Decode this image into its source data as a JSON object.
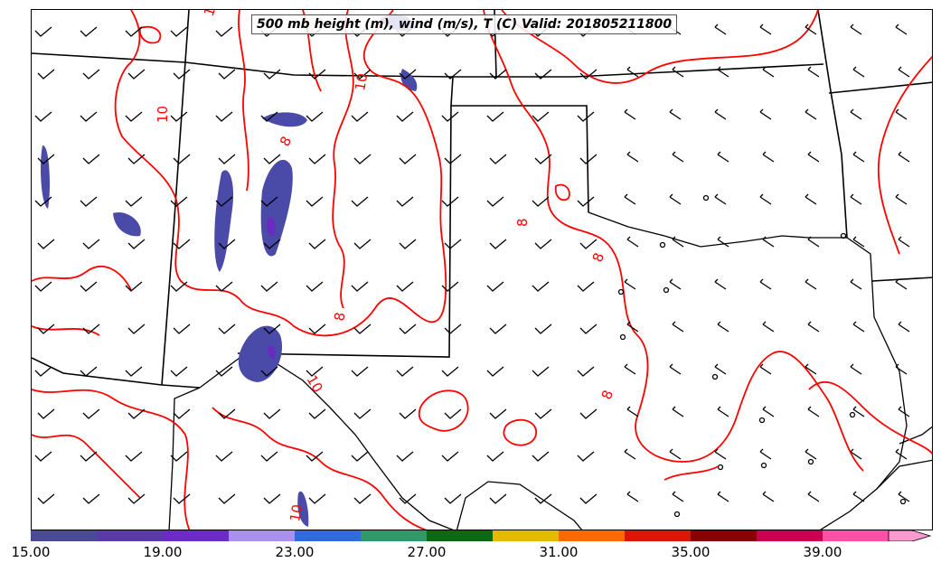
{
  "title": "500 mb height (m), wind (m/s), T (C) Valid: 201805211800",
  "contour_labels": [
    "10",
    "10",
    "10",
    "8",
    "8",
    "8",
    "8",
    "8",
    "10",
    "10"
  ],
  "colors": {
    "contour": "#ff0000",
    "boundary": "#000000",
    "shading": "#4a4aa8",
    "shading_core": "#6a2bc0"
  },
  "colorbar": {
    "tick_labels": [
      "15.00",
      "19.00",
      "23.00",
      "27.00",
      "31.00",
      "35.00",
      "39.00"
    ],
    "segments": [
      "#4a4a9a",
      "#5a3aa8",
      "#6a2bc8",
      "#a890f0",
      "#2e6be0",
      "#2e9a6a",
      "#0a6a10",
      "#e8b800",
      "#ff6a00",
      "#d81800",
      "#8a0000",
      "#c80050",
      "#ff50a8",
      "#ff9ad0"
    ]
  }
}
